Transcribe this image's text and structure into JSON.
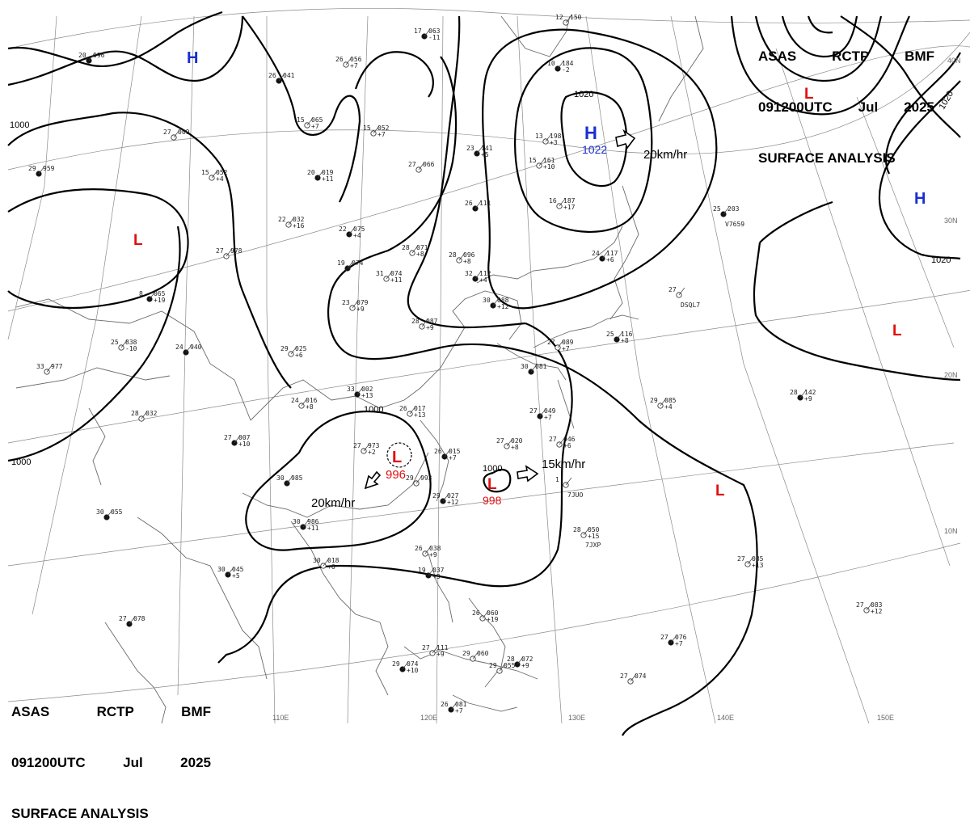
{
  "header": {
    "line1": [
      "ASAS",
      "RCTP",
      "BMF"
    ],
    "line2": [
      "091200UTC",
      "Jul",
      "2025"
    ],
    "line3": "SURFACE ANALYSIS"
  },
  "grid": {
    "longitude_labels": [
      "110E",
      "120E",
      "130E",
      "140E",
      "150E"
    ],
    "latitude_labels": [
      "40N",
      "30N",
      "20N",
      "10N"
    ]
  },
  "isobar_labels": [
    "1000",
    "1000",
    "1000",
    "1000",
    "1020",
    "1020",
    "1020"
  ],
  "pressure_systems": [
    {
      "type": "H",
      "color": "#1a2fd0"
    },
    {
      "type": "H",
      "color": "#1a2fd0",
      "pressure": "1022"
    },
    {
      "type": "H",
      "color": "#1a2fd0"
    },
    {
      "type": "L",
      "color": "#e01010"
    },
    {
      "type": "L",
      "color": "#e01010"
    },
    {
      "type": "L",
      "color": "#e01010"
    },
    {
      "type": "L",
      "color": "#e01010"
    },
    {
      "type": "L",
      "color": "#e01010",
      "pressure": "996"
    },
    {
      "type": "L",
      "color": "#e01010",
      "pressure": "998"
    }
  ],
  "movement_labels": [
    "20km/hr",
    "20km/hr",
    "15km/hr"
  ],
  "stations": [
    {
      "t": "20",
      "p": "096"
    },
    {
      "t": "26",
      "p": "056",
      "tend": "+7"
    },
    {
      "t": "17",
      "p": "063",
      "tend": "-11"
    },
    {
      "t": "12",
      "p": "150"
    },
    {
      "t": "26",
      "p": "041"
    },
    {
      "t": "15",
      "p": "065",
      "tend": "+7"
    },
    {
      "t": "15",
      "p": "052",
      "tend": "+7"
    },
    {
      "t": "10",
      "p": "184",
      "tend": "-2"
    },
    {
      "t": "27",
      "p": "009"
    },
    {
      "t": "23",
      "p": "141",
      "tend": "+5"
    },
    {
      "t": "13",
      "p": "198",
      "tend": "+3"
    },
    {
      "t": "29",
      "p": "959"
    },
    {
      "t": "15",
      "p": "052",
      "tend": "+4"
    },
    {
      "t": "20",
      "p": "019",
      "tend": "+11"
    },
    {
      "t": "27",
      "p": "066"
    },
    {
      "t": "15",
      "p": "161",
      "tend": "+10"
    },
    {
      "t": "26",
      "p": "111"
    },
    {
      "t": "16",
      "p": "187",
      "tend": "+17"
    },
    {
      "t": "25",
      "p": "203",
      "id": "V7659"
    },
    {
      "t": "22",
      "p": "032",
      "tend": "+16"
    },
    {
      "t": "22",
      "p": "075",
      "tend": "+4"
    },
    {
      "t": "27",
      "p": "978"
    },
    {
      "t": "19",
      "p": "074"
    },
    {
      "t": "28",
      "p": "071",
      "tend": "+8"
    },
    {
      "t": "28",
      "p": "096",
      "tend": "+8"
    },
    {
      "t": "24",
      "p": "117",
      "tend": "+6"
    },
    {
      "t": "31",
      "p": "074",
      "tend": "+11"
    },
    {
      "t": "32",
      "p": "112",
      "tend": "+4"
    },
    {
      "t": "27",
      "id": "DSQL7"
    },
    {
      "t": "8",
      "p": "065",
      "tend": "+19"
    },
    {
      "t": "23",
      "p": "079",
      "tend": "+9"
    },
    {
      "t": "30",
      "p": "088",
      "tend": "+12"
    },
    {
      "t": "28",
      "p": "087",
      "tend": "+9"
    },
    {
      "t": "27",
      "p": "089",
      "tend": "+7"
    },
    {
      "t": "25",
      "p": "116",
      "tend": "+8"
    },
    {
      "t": "25",
      "p": "838",
      "tend": "-10"
    },
    {
      "t": "24",
      "p": "940"
    },
    {
      "t": "29",
      "p": "025",
      "tend": "+6"
    },
    {
      "t": "30",
      "p": "081"
    },
    {
      "t": "33",
      "p": "977"
    },
    {
      "t": "33",
      "p": "002",
      "tend": "+13"
    },
    {
      "t": "24",
      "p": "016",
      "tend": "+8"
    },
    {
      "t": "26",
      "p": "017",
      "tend": "+13"
    },
    {
      "t": "27",
      "p": "049",
      "tend": "+7"
    },
    {
      "t": "29",
      "p": "085",
      "tend": "+4"
    },
    {
      "t": "28",
      "p": "142",
      "tend": "+9"
    },
    {
      "t": "28",
      "p": "032"
    },
    {
      "t": "27",
      "p": "007",
      "tend": "+10"
    },
    {
      "t": "27",
      "p": "973",
      "tend": "+2"
    },
    {
      "t": "26",
      "p": "015",
      "tend": "+7"
    },
    {
      "t": "27",
      "p": "020",
      "tend": "+8"
    },
    {
      "t": "27",
      "p": "046",
      "tend": "+6"
    },
    {
      "t": "30",
      "p": "985"
    },
    {
      "t": "29",
      "p": "993"
    },
    {
      "t": "29",
      "p": "027",
      "tend": "+12"
    },
    {
      "t": "1",
      "id": "7JUO"
    },
    {
      "t": "30",
      "p": "986",
      "tend": "+11"
    },
    {
      "t": "28",
      "p": "050",
      "tend": "+15",
      "id": "7JXP"
    },
    {
      "t": "30",
      "p": "055"
    },
    {
      "t": "26",
      "p": "038",
      "tend": "+9"
    },
    {
      "t": "27",
      "p": "085",
      "tend": "+13"
    },
    {
      "t": "30",
      "p": "045",
      "tend": "+5"
    },
    {
      "t": "30",
      "p": "018",
      "tend": "+6"
    },
    {
      "t": "19",
      "p": "037",
      "tend": "+3"
    },
    {
      "t": "27",
      "p": "083",
      "tend": "+12"
    },
    {
      "t": "27",
      "p": "078"
    },
    {
      "t": "26",
      "p": "060",
      "tend": "+19"
    },
    {
      "t": "27",
      "p": "076",
      "tend": "+7"
    },
    {
      "t": "27",
      "p": "111",
      "tend": "+9"
    },
    {
      "t": "29",
      "p": "060"
    },
    {
      "t": "29",
      "p": "074",
      "tend": "+10"
    },
    {
      "t": "29",
      "p": "055"
    },
    {
      "t": "28",
      "p": "072",
      "tend": "+9"
    },
    {
      "t": "27",
      "p": "074"
    },
    {
      "t": "26",
      "p": "081",
      "tend": "+7"
    }
  ]
}
